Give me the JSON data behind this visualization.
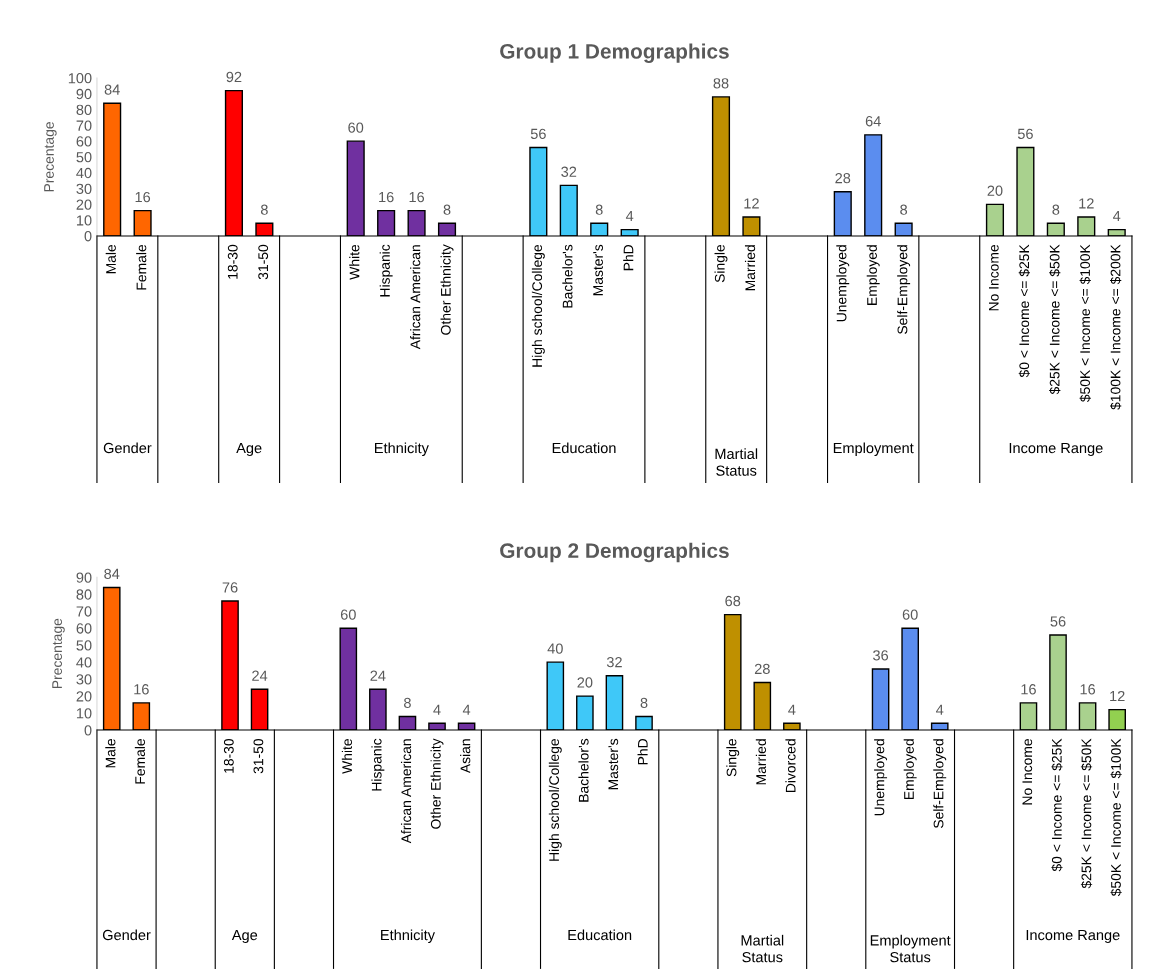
{
  "chart_data": [
    {
      "type": "bar",
      "title": "Group 1 Demographics",
      "ylabel": "Precentage",
      "categories": [
        "Male",
        "Female",
        null,
        null,
        "18-30",
        "31-50",
        null,
        null,
        "White",
        "Hispanic",
        "African American",
        "Other Ethnicity",
        null,
        null,
        "High school/College",
        "Bachelor's",
        "Master's",
        "PhD",
        null,
        null,
        "Single",
        "Married",
        null,
        null,
        "Unemployed",
        "Employed",
        "Self-Employed",
        null,
        null,
        "No Income",
        "$0 < Income <= $25K",
        "$25K < Income <= $50K",
        "$50K < Income <= $100K",
        "$100K < Income <= $200K"
      ],
      "values": [
        84,
        16,
        null,
        null,
        92,
        8,
        null,
        null,
        60,
        16,
        16,
        8,
        null,
        null,
        56,
        32,
        8,
        4,
        null,
        null,
        88,
        12,
        null,
        null,
        28,
        64,
        8,
        null,
        null,
        20,
        56,
        8,
        12,
        4
      ],
      "colors": [
        "#ff6600",
        "#ff6600",
        null,
        null,
        "#ff0000",
        "#ff0000",
        null,
        null,
        "#7030a0",
        "#7030a0",
        "#7030a0",
        "#7030a0",
        null,
        null,
        "#3fc8f8",
        "#3fc8f8",
        "#3fc8f8",
        "#3fc8f8",
        null,
        null,
        "#bf9000",
        "#bf9000",
        null,
        null,
        "#5b8def",
        "#5b8def",
        "#5b8def",
        null,
        null,
        "#a9d18e",
        "#a9d18e",
        "#a9d18e",
        "#a9d18e",
        "#a9d18e"
      ],
      "annotations": [
        "Gender",
        "Age",
        "Ethnicity",
        "Education",
        "Martial Status",
        "Employment",
        "Income Range"
      ],
      "ylim": [
        0,
        100
      ],
      "yticks": [
        0,
        10,
        20,
        30,
        40,
        50,
        60,
        70,
        80,
        90,
        100
      ],
      "data_labels": true,
      "grid": false,
      "legend": false
    },
    {
      "type": "bar",
      "title": "Group 2 Demographics",
      "ylabel": "Precentage",
      "categories": [
        "Male",
        "Female",
        null,
        null,
        "18-30",
        "31-50",
        null,
        null,
        "White",
        "Hispanic",
        "African American",
        "Other Ethnicity",
        "Asian",
        null,
        null,
        "High school/College",
        "Bachelor's",
        "Master's",
        "PhD",
        null,
        null,
        "Single",
        "Married",
        "Divorced",
        null,
        null,
        "Unemployed",
        "Employed",
        "Self-Employed",
        null,
        null,
        "No Income",
        "$0 < Income <= $25K",
        "$25K < Income <= $50K",
        "$50K < Income <= $100K"
      ],
      "values": [
        84,
        16,
        null,
        null,
        76,
        24,
        null,
        null,
        60,
        24,
        8,
        4,
        4,
        null,
        null,
        40,
        20,
        32,
        8,
        null,
        null,
        68,
        28,
        4,
        null,
        null,
        36,
        60,
        4,
        null,
        null,
        16,
        56,
        16,
        12
      ],
      "colors": [
        "#ff6600",
        "#ff6600",
        null,
        null,
        "#ff0000",
        "#ff0000",
        null,
        null,
        "#7030a0",
        "#7030a0",
        "#7030a0",
        "#7030a0",
        "#7030a0",
        null,
        null,
        "#3fc8f8",
        "#3fc8f8",
        "#3fc8f8",
        "#3fc8f8",
        null,
        null,
        "#bf9000",
        "#bf9000",
        "#bf9000",
        null,
        null,
        "#5b8def",
        "#5b8def",
        "#5b8def",
        null,
        null,
        "#a9d18e",
        "#a9d18e",
        "#a9d18e",
        "#92d050"
      ],
      "annotations": [
        "Gender",
        "Age",
        "Ethnicity",
        "Education",
        "Martial Status",
        "Employment Status",
        "Income Range"
      ],
      "ylim": [
        0,
        90
      ],
      "yticks": [
        0,
        10,
        20,
        30,
        40,
        50,
        60,
        70,
        80,
        90
      ],
      "data_labels": true,
      "grid": false,
      "legend": false
    }
  ]
}
